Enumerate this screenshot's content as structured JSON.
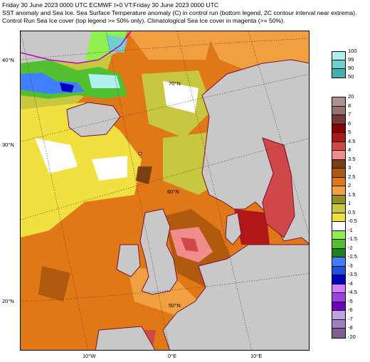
{
  "header": {
    "line1": "Friday 30 June 2023 0000 UTC  ECMWF  t+0  VT:Friday 30 June 2023 0000 UTC",
    "line2": "SST anomaly and Sea Ice. Sea Surface Temperature anomaly (C) in control run (bottom legend, 2C contour interval near extrema).",
    "line3": "Control Run Sea Ice cover (top legend >= 50% only). Climatological Sea Ice cover in magenta (>= 50%)."
  },
  "map": {
    "lat_labels_left": [
      "40°N",
      "30°N",
      "20°N"
    ],
    "lon_labels_bottom": [
      "10°W",
      "0°E",
      "10°E"
    ],
    "lat_labels_inside": [
      "70°N",
      "60°N",
      "50°N"
    ],
    "colors": {
      "land": "#c8c8c8",
      "coast": "#7a1030",
      "grid": "#5a3030",
      "sea_ice_clim": "#c000c0"
    }
  },
  "ice_legend": {
    "labels": [
      "100",
      "99",
      "90",
      "50"
    ],
    "colors": [
      "#b0f0f0",
      "#70d0d0",
      "#40b0b0"
    ]
  },
  "sst_legend": {
    "labels": [
      "20",
      "8",
      "7",
      "6",
      "5",
      "4.5",
      "4",
      "3.5",
      "3",
      "2.5",
      "2",
      "1.5",
      "1",
      "0.5",
      "-0.5",
      "-1",
      "-1.5",
      "-2",
      "-2.5",
      "-3",
      "-3.5",
      "-4",
      "-4.5",
      "-5",
      "-6",
      "-7",
      "-8",
      "-20"
    ],
    "colors": [
      "#b09090",
      "#9b7070",
      "#7a3838",
      "#8b0000",
      "#b01818",
      "#d04848",
      "#f08c8c",
      "#7a4010",
      "#b05a10",
      "#e07818",
      "#f0a040",
      "#909020",
      "#c8c840",
      "#f0e040",
      "#ffffff",
      "#90f050",
      "#50c030",
      "#208020",
      "#4080ff",
      "#2050e0",
      "#0000c0",
      "#d080ff",
      "#a040e0",
      "#7000c0",
      "#c0a0e0",
      "#a080c0",
      "#806090",
      "#a090b0"
    ]
  }
}
